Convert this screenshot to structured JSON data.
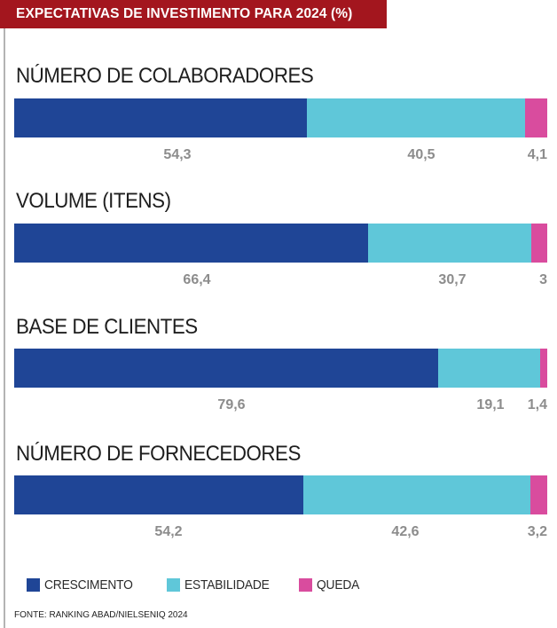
{
  "header": {
    "title": "EXPECTATIVAS DE INVESTIMENTO PARA 2024 (%)"
  },
  "colors": {
    "banner": "#a3161e",
    "crescimento": "#1f4596",
    "estabilidade": "#5fc7d9",
    "queda": "#d94c9e",
    "value_text": "#8c8c8c"
  },
  "chart_data": {
    "type": "bar",
    "orientation": "horizontal",
    "stacked": true,
    "title": "EXPECTATIVAS DE INVESTIMENTO PARA 2024 (%)",
    "legend_position": "bottom-left",
    "categories": [
      "NÚMERO DE COLABORADORES",
      "VOLUME (ITENS)",
      "BASE DE CLIENTES",
      "NÚMERO DE FORNECEDORES"
    ],
    "series": [
      {
        "name": "CRESCIMENTO",
        "values": [
          54.3,
          66.4,
          79.6,
          54.2
        ],
        "labels": [
          "54,3",
          "66,4",
          "79,6",
          "54,2"
        ]
      },
      {
        "name": "ESTABILIDADE",
        "values": [
          40.5,
          30.7,
          19.1,
          42.6
        ],
        "labels": [
          "40,5",
          "30,7",
          "19,1",
          "42,6"
        ]
      },
      {
        "name": "QUEDA",
        "values": [
          4.1,
          3,
          1.4,
          3.2
        ],
        "labels": [
          "4,1",
          "3",
          "1,4",
          "3,2"
        ]
      }
    ],
    "xlim": [
      0,
      100
    ]
  },
  "footer": {
    "source": "FONTE: RANKING ABAD/NIELSENIQ 2024"
  }
}
